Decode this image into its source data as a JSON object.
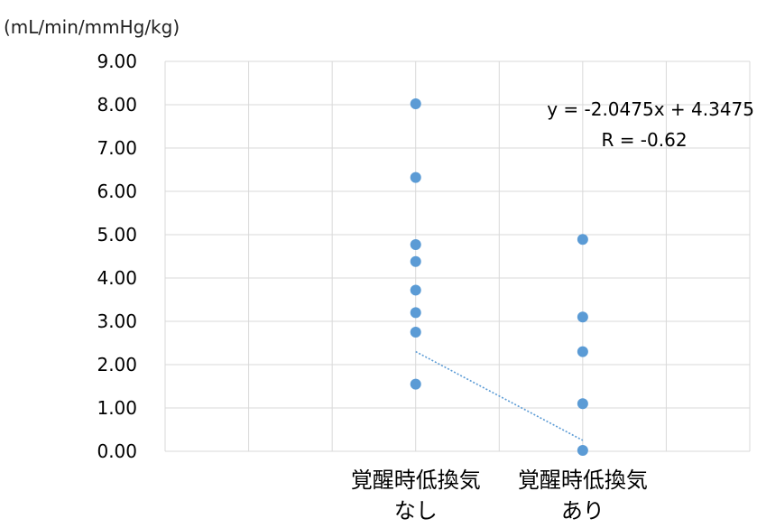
{
  "chart_data": {
    "type": "scatter",
    "unit_label": "(mL/min/mmHg/kg)",
    "categories": [
      "覚醒時低換気\nなし",
      "覚醒時低換気\nあり"
    ],
    "category_positions": [
      1,
      2
    ],
    "xlim": [
      -0.5,
      3.0
    ],
    "ylim": [
      0,
      9
    ],
    "y_ticks": [
      "0.00",
      "1.00",
      "2.00",
      "3.00",
      "4.00",
      "5.00",
      "6.00",
      "7.00",
      "8.00",
      "9.00"
    ],
    "grid": true,
    "series": [
      {
        "color": "#5B9BD5",
        "points": [
          {
            "x": 1,
            "y": 8.02
          },
          {
            "x": 1,
            "y": 6.32
          },
          {
            "x": 1,
            "y": 4.77
          },
          {
            "x": 1,
            "y": 4.38
          },
          {
            "x": 1,
            "y": 3.72
          },
          {
            "x": 1,
            "y": 3.2
          },
          {
            "x": 1,
            "y": 2.75
          },
          {
            "x": 1,
            "y": 1.55
          },
          {
            "x": 2,
            "y": 4.89
          },
          {
            "x": 2,
            "y": 3.1
          },
          {
            "x": 2,
            "y": 2.3
          },
          {
            "x": 2,
            "y": 1.1
          },
          {
            "x": 2,
            "y": 0.02
          }
        ]
      }
    ],
    "trendline": {
      "type": "linear",
      "slope": -2.0475,
      "intercept": 4.3475,
      "x_range": [
        1,
        2
      ],
      "equation_label": "y = -2.0475x + 4.3475",
      "r_label": "R = -0.62",
      "style": "dotted",
      "color": "#5B9BD5"
    }
  }
}
